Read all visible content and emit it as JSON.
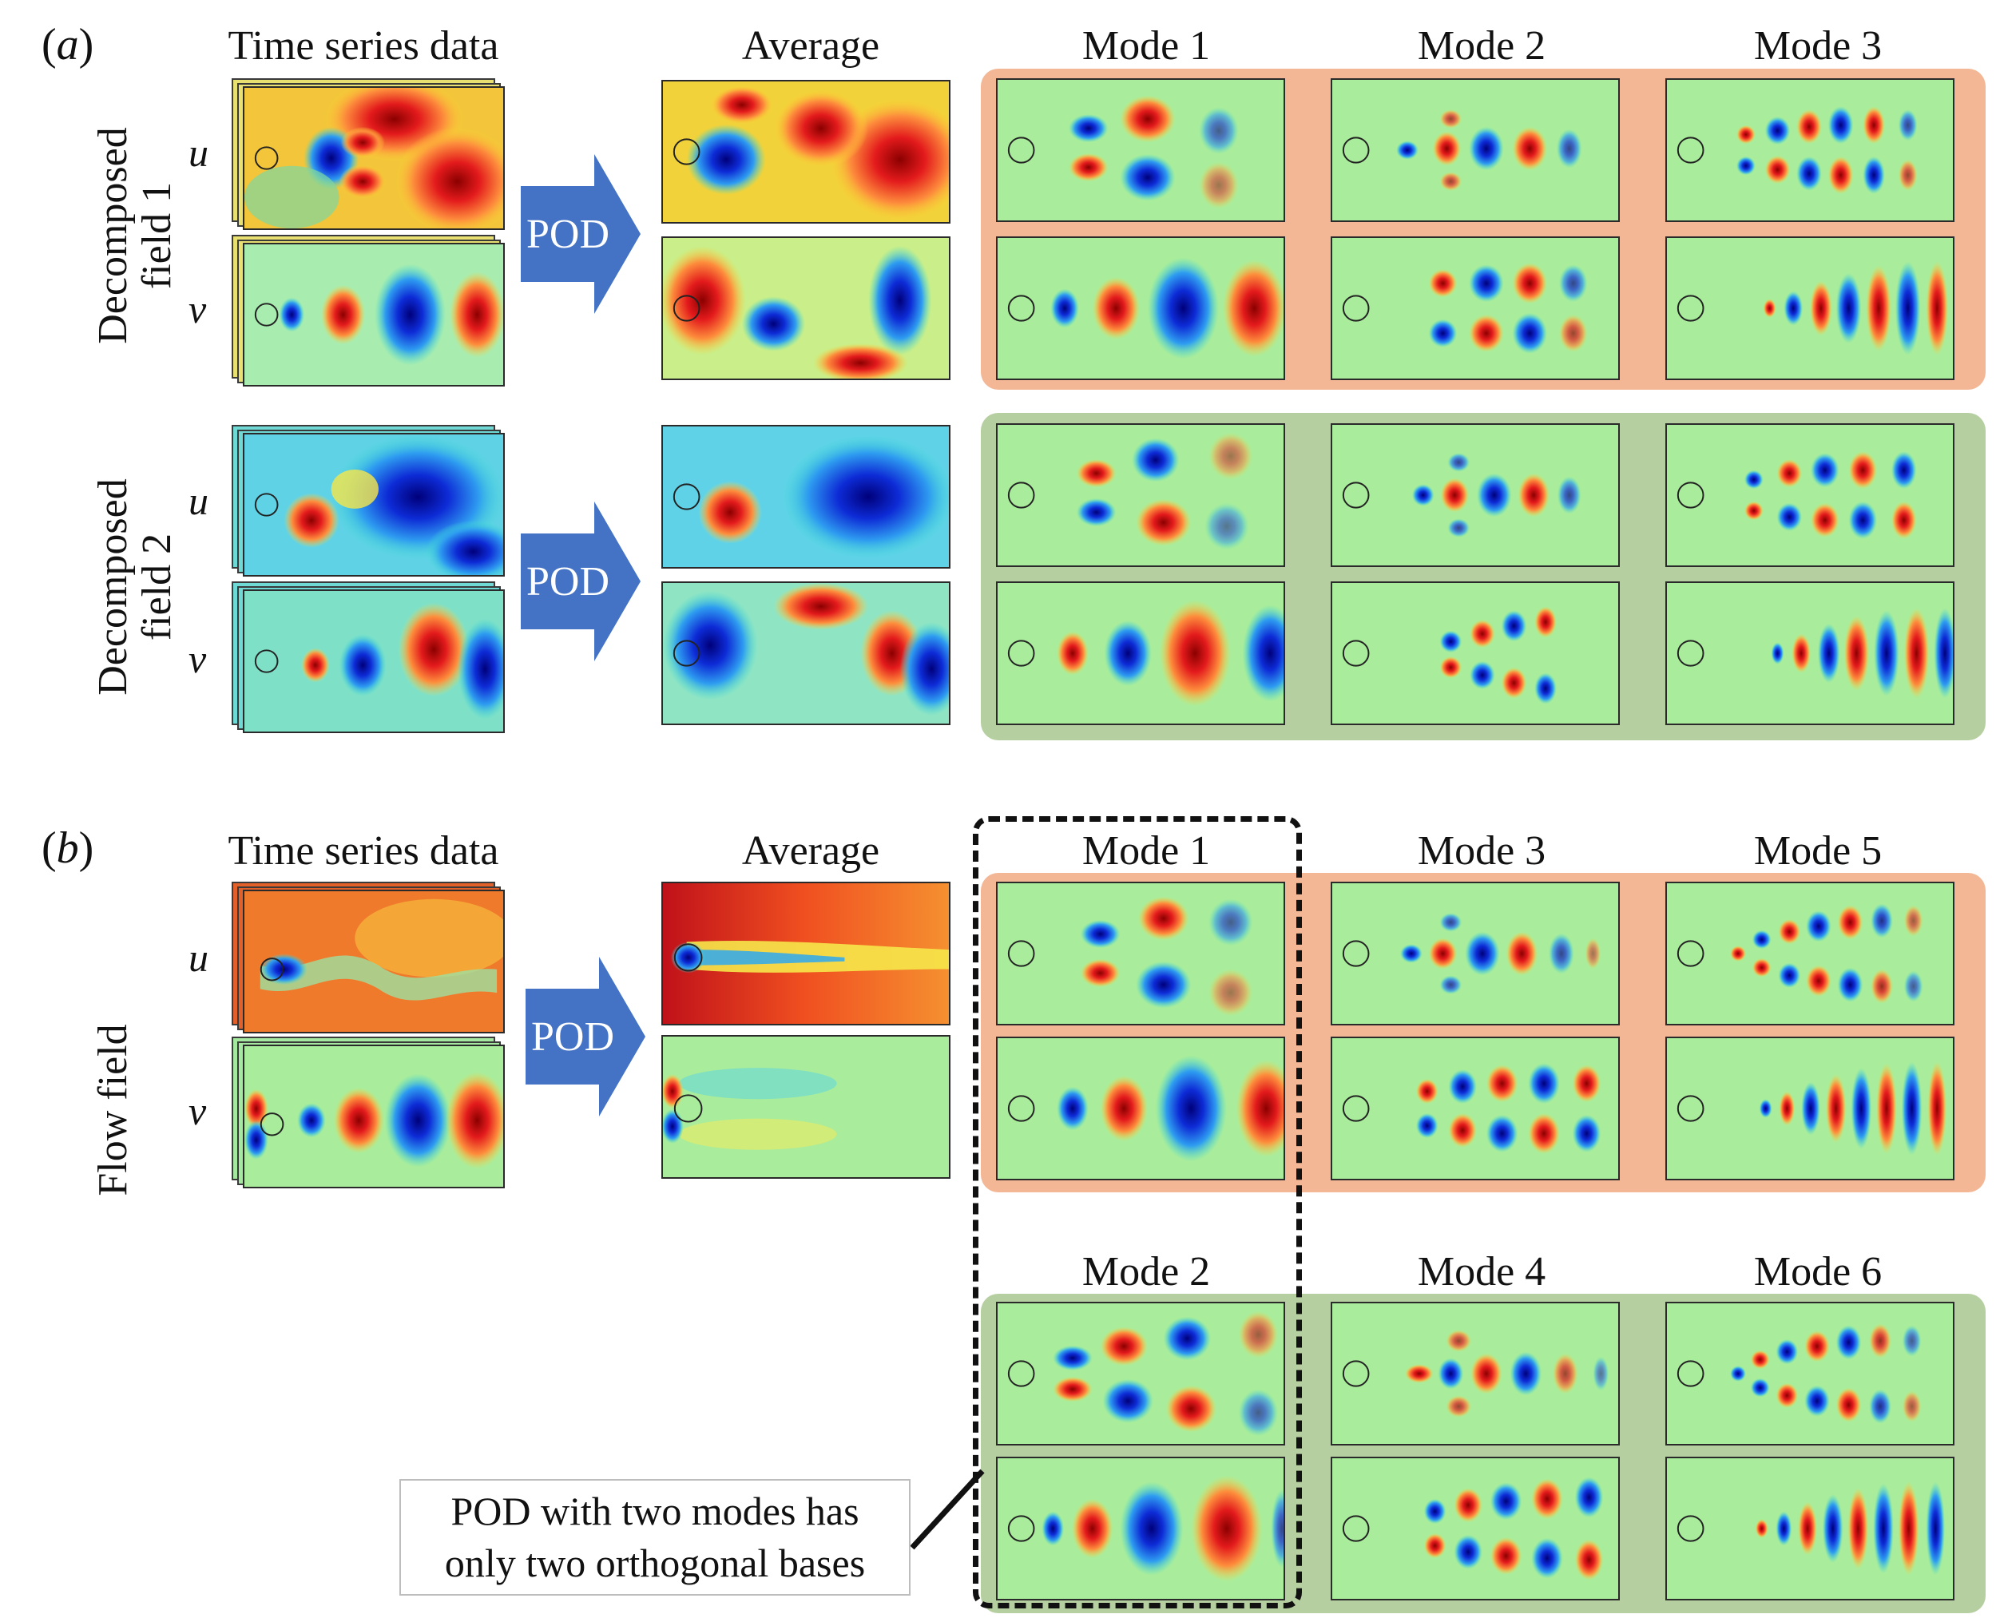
{
  "panel_a": {
    "label_open": "(",
    "label_letter": "a",
    "label_close": ")",
    "headers": {
      "time_series": "Time series data",
      "average": "Average",
      "mode1": "Mode 1",
      "mode2": "Mode 2",
      "mode3": "Mode 3"
    },
    "row1_label_line1": "Decomposed",
    "row1_label_line2": "field 1",
    "row2_label_line1": "Decomposed",
    "row2_label_line2": "field 2",
    "var_u": "u",
    "var_v": "v",
    "pod_label": "POD"
  },
  "panel_b": {
    "label_open": "(",
    "label_letter": "b",
    "label_close": ")",
    "headers": {
      "time_series": "Time series data",
      "average": "Average",
      "mode1": "Mode 1",
      "mode3": "Mode 3",
      "mode5": "Mode 5",
      "mode2": "Mode 2",
      "mode4": "Mode 4",
      "mode6": "Mode 6"
    },
    "row_label": "Flow field",
    "var_u": "u",
    "var_v": "v",
    "pod_label": "POD",
    "note_line1": "POD with two modes has",
    "note_line2": "only two orthogonal bases"
  },
  "colors": {
    "group_orange": "#f3b796",
    "group_green": "#b6cfa0",
    "arrow_blue": "#4472c4",
    "colormap_red": "#d7191c",
    "colormap_blue": "#1a2fd0",
    "field_background": "#c5f0a8"
  }
}
